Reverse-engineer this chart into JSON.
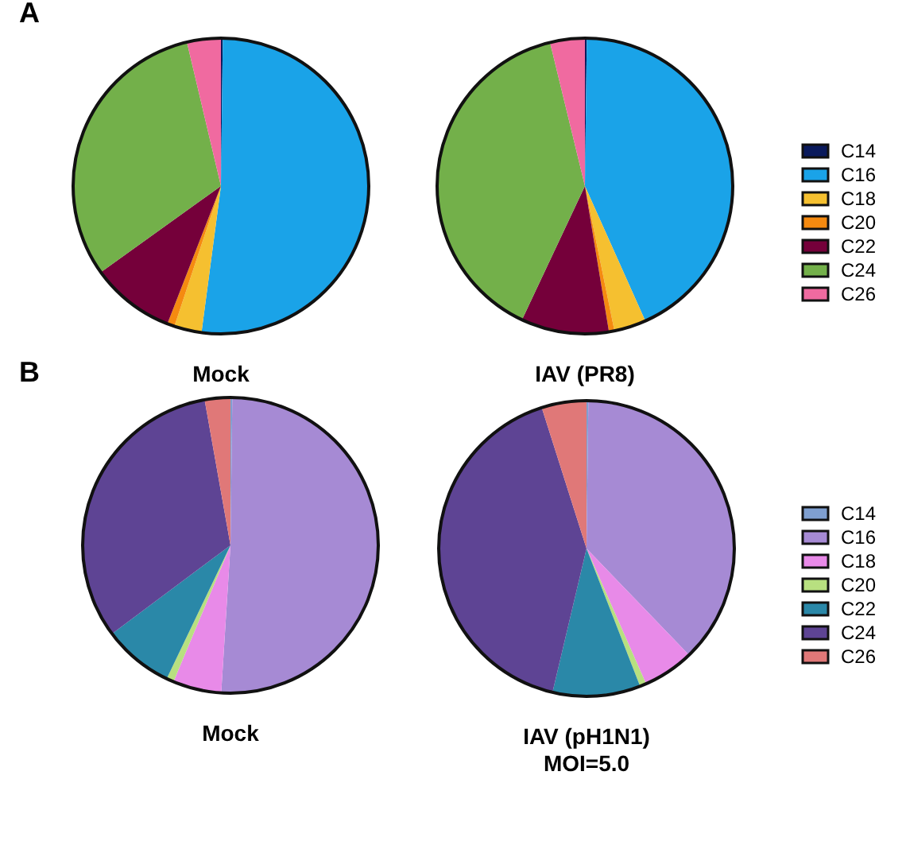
{
  "chart_data": [
    {
      "type": "pie",
      "title": "Mock",
      "annotations": [
        "A"
      ],
      "categories": [
        null,
        null,
        null,
        null,
        null,
        null,
        null
      ],
      "values": [
        0.2,
        51.9,
        3.0,
        0.8,
        9.2,
        31.2,
        3.7
      ],
      "colors": [
        "#0a1a5c",
        "#1aa3e8",
        "#f5c030",
        "#f58a10",
        "#75003a",
        "#73b04a",
        "#f06aa0"
      ],
      "legend": false
    },
    {
      "type": "pie",
      "title": "IAV (PR8)",
      "categories": [
        "C14",
        "C16",
        "C18",
        "C20",
        "C22",
        "C24",
        "C26"
      ],
      "values": [
        0.2,
        43.1,
        3.5,
        0.6,
        9.6,
        39.2,
        3.8
      ],
      "colors": [
        "#0a1a5c",
        "#1aa3e8",
        "#f5c030",
        "#f58a10",
        "#75003a",
        "#73b04a",
        "#f06aa0"
      ],
      "legend": "right"
    },
    {
      "type": "pie",
      "title": "Mock",
      "annotations": [
        "B"
      ],
      "categories": [
        null,
        null,
        null,
        null,
        null,
        null,
        null
      ],
      "values": [
        0.2,
        50.8,
        5.3,
        0.8,
        7.7,
        32.4,
        2.8
      ],
      "colors": [
        "#7f9fd0",
        "#a68ad4",
        "#e88ae8",
        "#b8e080",
        "#2a88a8",
        "#5e4494",
        "#e07878"
      ],
      "legend": false
    },
    {
      "type": "pie",
      "title": "IAV (pH1N1)\nMOI=5.0",
      "categories": [
        "C14",
        "C16",
        "C18",
        "C20",
        "C22",
        "C24",
        "C26"
      ],
      "values": [
        0.2,
        37.6,
        5.6,
        0.7,
        9.6,
        41.4,
        4.9
      ],
      "colors": [
        "#7f9fd0",
        "#a68ad4",
        "#e88ae8",
        "#b8e080",
        "#2a88a8",
        "#5e4494",
        "#e07878"
      ],
      "legend": "right"
    }
  ]
}
